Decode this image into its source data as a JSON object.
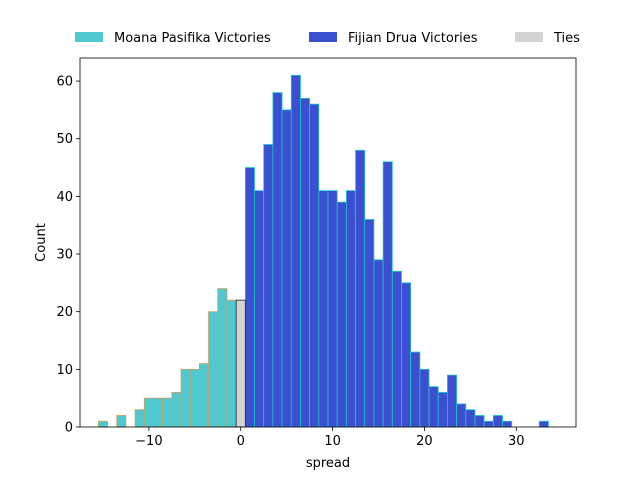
{
  "chart_data": {
    "type": "bar",
    "xlabel": "spread",
    "ylabel": "Count",
    "xlim": [
      -17.5,
      36.5
    ],
    "ylim": [
      0,
      64
    ],
    "xticks": [
      -10,
      0,
      10,
      20,
      30
    ],
    "yticks": [
      0,
      10,
      20,
      30,
      40,
      50,
      60
    ],
    "grid": false,
    "legend_position": "top, above plot, horizontal",
    "bin_width": 1,
    "series": [
      {
        "name": "Moana Pasifika Victories",
        "fill": "#4fc8cf",
        "edge": "#c8a060",
        "bins": [
          {
            "x": -15,
            "count": 1
          },
          {
            "x": -14,
            "count": 0
          },
          {
            "x": -13,
            "count": 2
          },
          {
            "x": -12,
            "count": 0
          },
          {
            "x": -11,
            "count": 3
          },
          {
            "x": -10,
            "count": 5
          },
          {
            "x": -9,
            "count": 5
          },
          {
            "x": -8,
            "count": 5
          },
          {
            "x": -7,
            "count": 6
          },
          {
            "x": -6,
            "count": 10
          },
          {
            "x": -5,
            "count": 10
          },
          {
            "x": -4,
            "count": 11
          },
          {
            "x": -3,
            "count": 20
          },
          {
            "x": -2,
            "count": 24
          },
          {
            "x": -1,
            "count": 22
          }
        ]
      },
      {
        "name": "Fijian Drua Victories",
        "fill": "#3b4fd1",
        "edge": "#1ec8c8",
        "bins": [
          {
            "x": 1,
            "count": 45
          },
          {
            "x": 2,
            "count": 41
          },
          {
            "x": 3,
            "count": 49
          },
          {
            "x": 4,
            "count": 58
          },
          {
            "x": 5,
            "count": 55
          },
          {
            "x": 6,
            "count": 61
          },
          {
            "x": 7,
            "count": 57
          },
          {
            "x": 8,
            "count": 56
          },
          {
            "x": 9,
            "count": 41
          },
          {
            "x": 10,
            "count": 41
          },
          {
            "x": 11,
            "count": 39
          },
          {
            "x": 12,
            "count": 41
          },
          {
            "x": 13,
            "count": 48
          },
          {
            "x": 14,
            "count": 36
          },
          {
            "x": 15,
            "count": 29
          },
          {
            "x": 16,
            "count": 46
          },
          {
            "x": 17,
            "count": 27
          },
          {
            "x": 18,
            "count": 25
          },
          {
            "x": 19,
            "count": 13
          },
          {
            "x": 20,
            "count": 10
          },
          {
            "x": 21,
            "count": 7
          },
          {
            "x": 22,
            "count": 6
          },
          {
            "x": 23,
            "count": 9
          },
          {
            "x": 24,
            "count": 4
          },
          {
            "x": 25,
            "count": 3
          },
          {
            "x": 26,
            "count": 2
          },
          {
            "x": 27,
            "count": 1
          },
          {
            "x": 28,
            "count": 2
          },
          {
            "x": 29,
            "count": 1
          },
          {
            "x": 30,
            "count": 0
          },
          {
            "x": 31,
            "count": 0
          },
          {
            "x": 32,
            "count": 0
          },
          {
            "x": 33,
            "count": 1
          }
        ]
      },
      {
        "name": "Ties",
        "fill": "#d3d3d3",
        "edge": "#222222",
        "bins": [
          {
            "x": 0,
            "count": 22
          }
        ]
      }
    ]
  }
}
